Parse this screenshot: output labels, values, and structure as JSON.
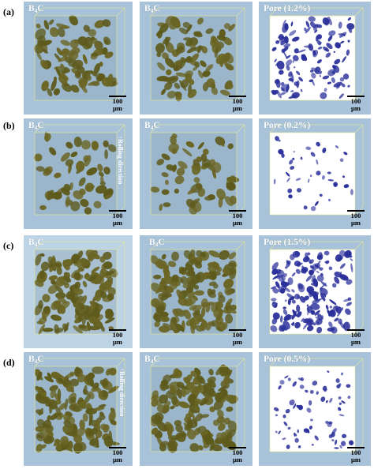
{
  "rows": [
    {
      "label": "(a)",
      "panels": [
        {
          "title_main": "B",
          "title_sub": "4",
          "title_end": "C",
          "kind": "b4c",
          "scale": "100 μm"
        },
        {
          "title_main": "B",
          "title_sub": "4",
          "title_end": "C",
          "kind": "b4c",
          "scale": "100 μm"
        },
        {
          "title_main": "Pore (1.2%)",
          "title_sub": "",
          "title_end": "",
          "kind": "pore",
          "scale": "100 μm"
        }
      ]
    },
    {
      "label": "(b)",
      "rolling": "Rolling direction",
      "panels": [
        {
          "title_main": "B",
          "title_sub": "4",
          "title_end": "C",
          "kind": "b4c",
          "scale": "100 μm"
        },
        {
          "title_main": "B",
          "title_sub": "4",
          "title_end": "C",
          "kind": "b4c",
          "scale": "100 μm"
        },
        {
          "title_main": "Pore (0.2%)",
          "title_sub": "",
          "title_end": "",
          "kind": "pore",
          "scale": "100 μm"
        }
      ]
    },
    {
      "label": "(c)",
      "panels": [
        {
          "title_main": "B",
          "title_sub": "4",
          "title_end": "C",
          "kind": "b4c",
          "scale": "100 μm"
        },
        {
          "title_main": "B",
          "title_sub": "4",
          "title_end": "C",
          "kind": "b4c",
          "scale": "100 μm"
        },
        {
          "title_main": "Pore (1.5%)",
          "title_sub": "",
          "title_end": "",
          "kind": "pore",
          "scale": "100 μm"
        }
      ]
    },
    {
      "label": "(d)",
      "rolling": "Rolling direction",
      "panels": [
        {
          "title_main": "B",
          "title_sub": "4",
          "title_end": "C",
          "kind": "b4c",
          "scale": "100 μm"
        },
        {
          "title_main": "B",
          "title_sub": "4",
          "title_end": "C",
          "kind": "b4c",
          "scale": "100 μm"
        },
        {
          "title_main": "Pore (0.5%)",
          "title_sub": "",
          "title_end": "",
          "kind": "pore",
          "scale": "100 μm"
        }
      ]
    }
  ],
  "colors": {
    "panel_bg": "#a7c2d9",
    "panel_bg_light": "#bdd3e6",
    "b4c_particle": "#5e5a1c",
    "b4c_dense": "#6b6524",
    "pore": "#2a2f9a",
    "box_edge": "#e6e89a"
  }
}
